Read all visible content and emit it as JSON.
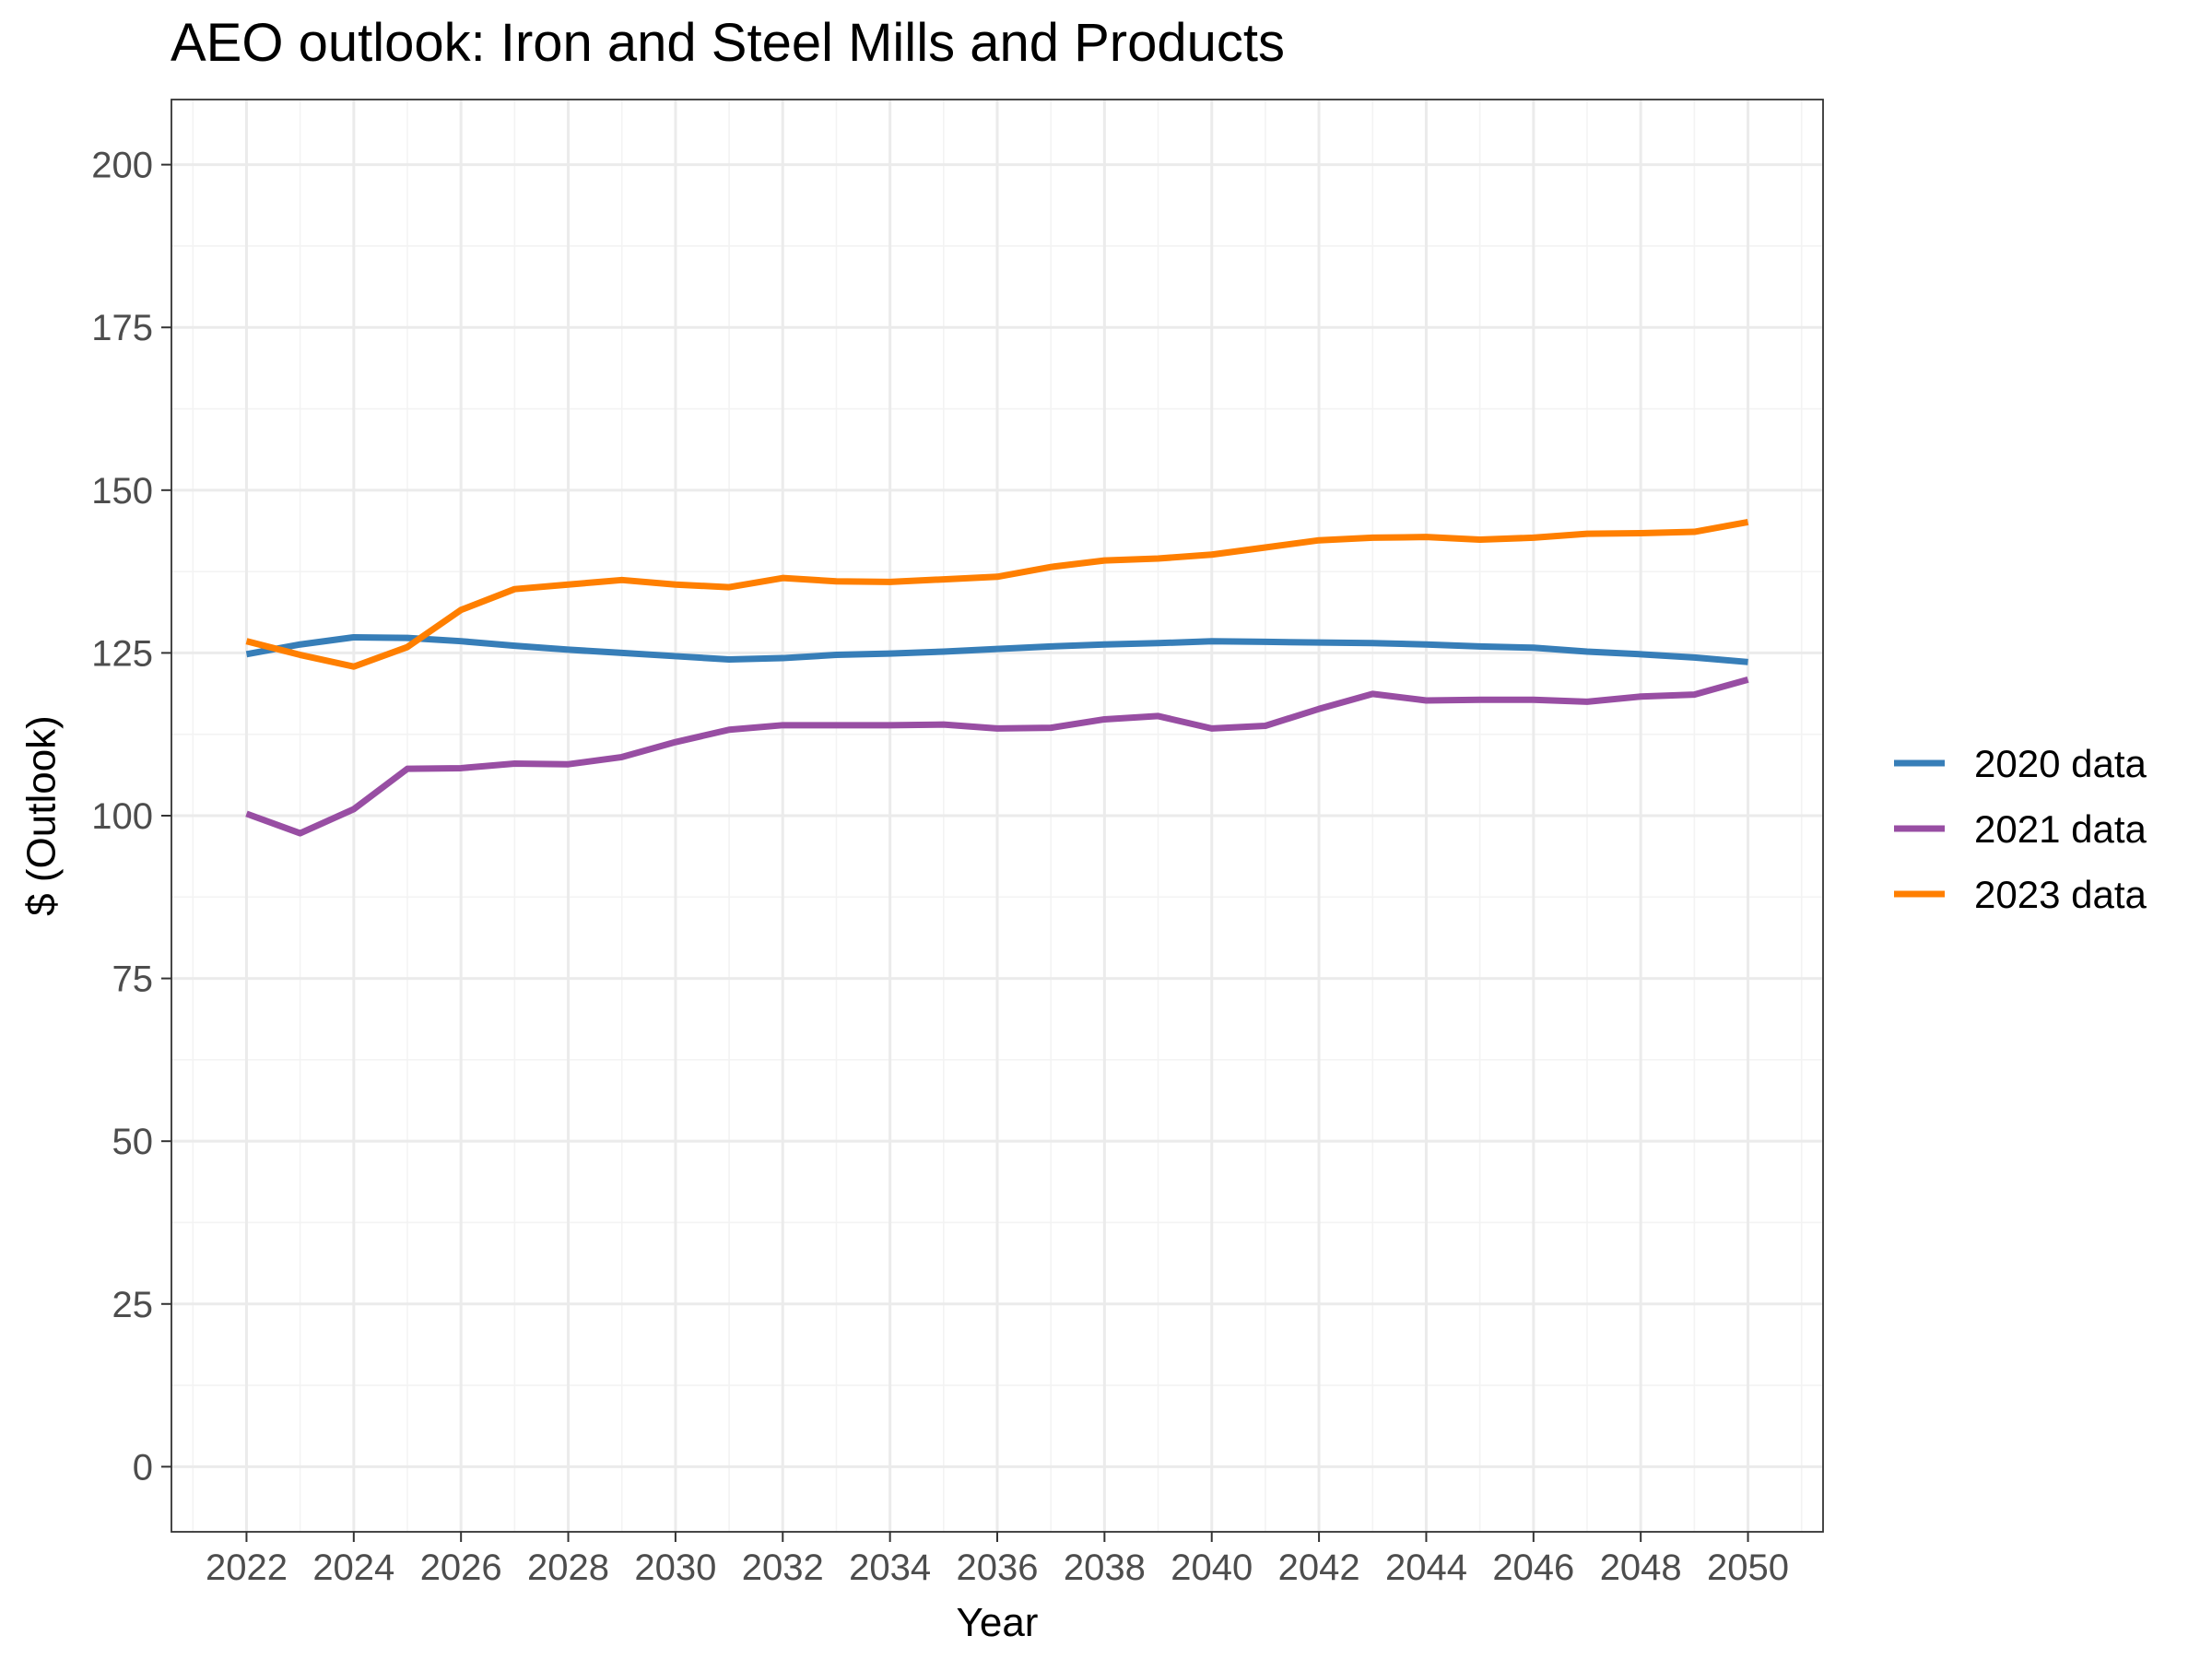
{
  "chart_data": {
    "type": "line",
    "title": "AEO outlook: Iron and Steel Mills and Products",
    "xlabel": "Year",
    "ylabel": "$ (Outlook)",
    "xlim": [
      2020.6,
      2051.4
    ],
    "ylim": [
      -10,
      210
    ],
    "x_ticks": [
      2022,
      2024,
      2026,
      2028,
      2030,
      2032,
      2034,
      2036,
      2038,
      2040,
      2042,
      2044,
      2046,
      2048,
      2050
    ],
    "y_ticks": [
      0,
      25,
      50,
      75,
      100,
      125,
      150,
      175,
      200
    ],
    "grid": true,
    "legend_position": "right",
    "x": [
      2022,
      2023,
      2024,
      2025,
      2026,
      2027,
      2028,
      2029,
      2030,
      2031,
      2032,
      2033,
      2034,
      2035,
      2036,
      2037,
      2038,
      2039,
      2040,
      2041,
      2042,
      2043,
      2044,
      2045,
      2046,
      2047,
      2048,
      2049,
      2050
    ],
    "series": [
      {
        "name": "2020 data",
        "color": "#377EB8",
        "values": [
          124.8,
          126.3,
          127.4,
          127.3,
          126.8,
          126.1,
          125.5,
          125.0,
          124.5,
          124.0,
          124.2,
          124.7,
          124.9,
          125.2,
          125.6,
          126.0,
          126.3,
          126.5,
          126.8,
          126.7,
          126.6,
          126.5,
          126.3,
          126.0,
          125.8,
          125.2,
          124.8,
          124.3,
          123.6
        ]
      },
      {
        "name": "2021 data",
        "color": "#984EA3",
        "values": [
          100.3,
          97.3,
          101.0,
          107.2,
          107.3,
          108.0,
          107.9,
          109.0,
          111.3,
          113.2,
          113.9,
          113.9,
          113.9,
          114.0,
          113.4,
          113.5,
          114.8,
          115.3,
          113.4,
          113.8,
          116.4,
          118.7,
          117.7,
          117.8,
          117.8,
          117.5,
          118.3,
          118.6,
          120.9
        ]
      },
      {
        "name": "2023 data",
        "color": "#FF7F00",
        "values": [
          126.8,
          124.7,
          122.9,
          125.9,
          131.6,
          134.8,
          135.5,
          136.2,
          135.5,
          135.1,
          136.5,
          136.0,
          135.9,
          136.3,
          136.7,
          138.2,
          139.2,
          139.5,
          140.1,
          141.2,
          142.3,
          142.7,
          142.8,
          142.4,
          142.7,
          143.3,
          143.4,
          143.6,
          145.1
        ]
      }
    ]
  }
}
